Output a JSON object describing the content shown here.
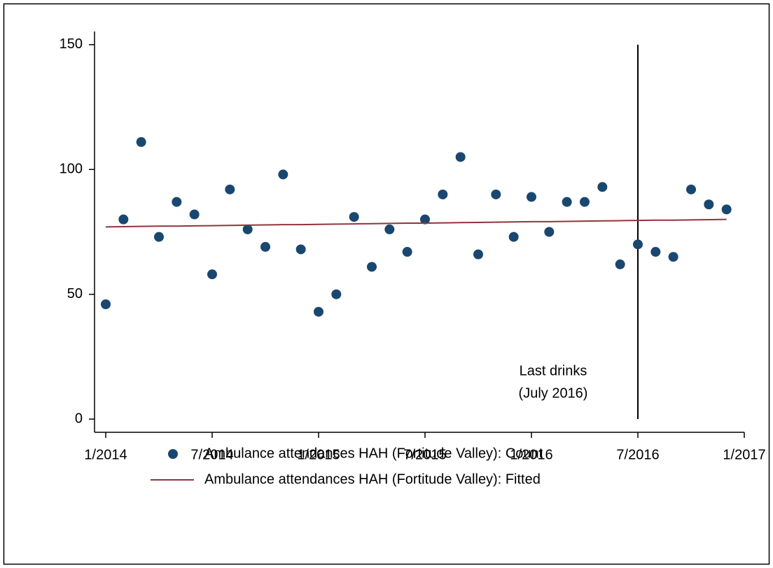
{
  "chart_data": {
    "type": "scatter",
    "x": [
      "1/2014",
      "2/2014",
      "3/2014",
      "4/2014",
      "5/2014",
      "6/2014",
      "7/2014",
      "8/2014",
      "9/2014",
      "10/2014",
      "11/2014",
      "12/2014",
      "1/2015",
      "2/2015",
      "3/2015",
      "4/2015",
      "5/2015",
      "6/2015",
      "7/2015",
      "8/2015",
      "9/2015",
      "10/2015",
      "11/2015",
      "12/2015",
      "1/2016",
      "2/2016",
      "3/2016",
      "4/2016",
      "5/2016",
      "6/2016",
      "7/2016",
      "8/2016",
      "9/2016",
      "10/2016",
      "11/2016",
      "12/2016"
    ],
    "series": [
      {
        "name": "Ambulance attendances HAH (Fortitude Valley): Count",
        "type": "scatter",
        "color": "#1a476f",
        "values": [
          46,
          80,
          111,
          73,
          87,
          82,
          58,
          92,
          76,
          69,
          98,
          68,
          43,
          50,
          81,
          61,
          76,
          67,
          80,
          90,
          105,
          66,
          90,
          73,
          89,
          75,
          87,
          87,
          93,
          62,
          70,
          67,
          65,
          92,
          86,
          84
        ]
      },
      {
        "name": "Ambulance attendances HAH (Fortitude Valley): Fitted",
        "type": "line",
        "color": "#90353b",
        "values": [
          77.0,
          77.1,
          77.2,
          77.3,
          77.3,
          77.4,
          77.5,
          77.6,
          77.7,
          77.8,
          77.9,
          77.9,
          78.0,
          78.1,
          78.2,
          78.3,
          78.4,
          78.5,
          78.5,
          78.6,
          78.7,
          78.8,
          78.9,
          79.0,
          79.1,
          79.1,
          79.2,
          79.3,
          79.4,
          79.5,
          79.6,
          79.7,
          79.7,
          79.8,
          79.9,
          80.0
        ]
      }
    ],
    "xlim": [
      "1/2014",
      "1/2017"
    ],
    "xticks": [
      "1/2014",
      "7/2014",
      "1/2015",
      "7/2015",
      "1/2016",
      "7/2016",
      "1/2017"
    ],
    "ylim": [
      -5,
      155
    ],
    "yticks": [
      0,
      50,
      100,
      150
    ],
    "vline": {
      "x": "7/2016",
      "ymin": 0,
      "ymax": 150
    },
    "annotation": [
      "Last drinks",
      "(July 2016)"
    ]
  }
}
